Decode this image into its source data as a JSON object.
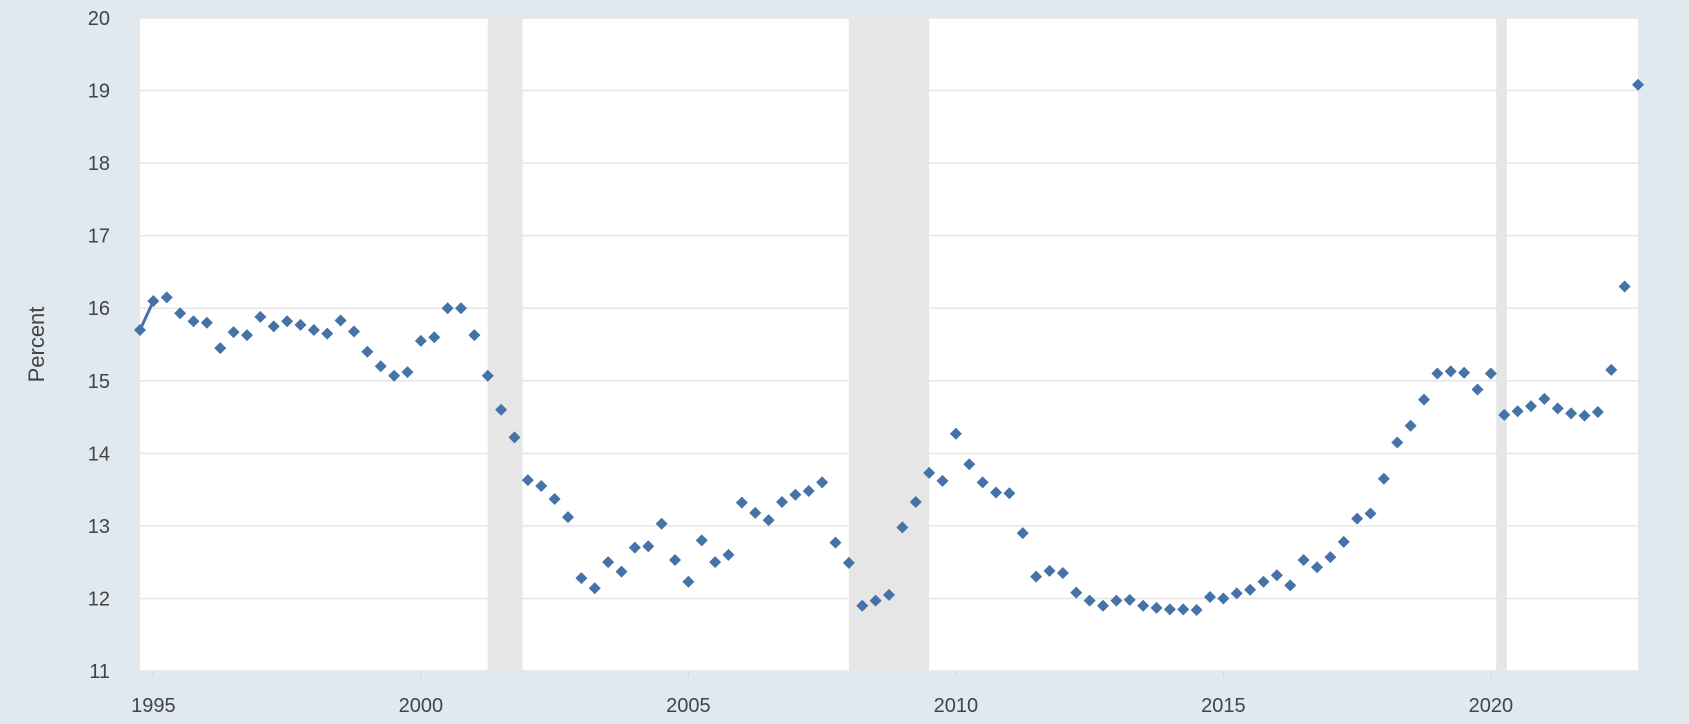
{
  "chart_data": {
    "type": "scatter",
    "title": "",
    "xlabel": "",
    "ylabel": "Percent",
    "xlim": [
      1994.75,
      2022.75
    ],
    "ylim": [
      11,
      20
    ],
    "x_ticks": [
      1995,
      2000,
      2005,
      2010,
      2015,
      2020
    ],
    "y_ticks": [
      11,
      12,
      13,
      14,
      15,
      16,
      17,
      18,
      19,
      20
    ],
    "grid": "horizontal",
    "legend": "none",
    "colors": {
      "marker": "#4572a7",
      "plot_background": "#ffffff",
      "page_background": "#e1e9f0",
      "recession_shading": "#e6e6e6",
      "grid": "#e6e6e6"
    },
    "recessions": [
      [
        2001.25,
        2001.9
      ],
      [
        2008.0,
        2009.5
      ],
      [
        2020.1,
        2020.3
      ]
    ],
    "series": [
      {
        "x": [
          1994.75,
          1995.0,
          1995.25,
          1995.5,
          1995.75,
          1996.0,
          1996.25,
          1996.5,
          1996.75,
          1997.0,
          1997.25,
          1997.5,
          1997.75,
          1998.0,
          1998.25,
          1998.5,
          1998.75,
          1999.0,
          1999.25,
          1999.5,
          1999.75,
          2000.0,
          2000.25,
          2000.5,
          2000.75,
          2001.0,
          2001.25,
          2001.5,
          2001.75,
          2002.0,
          2002.25,
          2002.5,
          2002.75,
          2003.0,
          2003.25,
          2003.5,
          2003.75,
          2004.0,
          2004.25,
          2004.5,
          2004.75,
          2005.0,
          2005.25,
          2005.5,
          2005.75,
          2006.0,
          2006.25,
          2006.5,
          2006.75,
          2007.0,
          2007.25,
          2007.5,
          2007.75,
          2008.0,
          2008.25,
          2008.5,
          2008.75,
          2009.0,
          2009.25,
          2009.5,
          2009.75,
          2010.0,
          2010.25,
          2010.5,
          2010.75,
          2011.0,
          2011.25,
          2011.5,
          2011.75,
          2012.0,
          2012.25,
          2012.5,
          2012.75,
          2013.0,
          2013.25,
          2013.5,
          2013.75,
          2014.0,
          2014.25,
          2014.5,
          2014.75,
          2015.0,
          2015.25,
          2015.5,
          2015.75,
          2016.0,
          2016.25,
          2016.5,
          2016.75,
          2017.0,
          2017.25,
          2017.5,
          2017.75,
          2018.0,
          2018.25,
          2018.5,
          2018.75,
          2019.0,
          2019.25,
          2019.5,
          2019.75,
          2020.0,
          2020.25,
          2020.5,
          2020.75,
          2021.0,
          2021.25,
          2021.5,
          2021.75,
          2022.0,
          2022.25,
          2022.5,
          2022.75
        ],
        "y": [
          15.7,
          16.1,
          16.15,
          15.93,
          15.82,
          15.8,
          15.45,
          15.67,
          15.63,
          15.88,
          15.75,
          15.82,
          15.77,
          15.7,
          15.65,
          15.83,
          15.68,
          15.4,
          15.2,
          15.07,
          15.12,
          15.55,
          15.6,
          16.0,
          16.0,
          15.63,
          15.07,
          14.6,
          14.22,
          13.63,
          13.55,
          13.37,
          13.12,
          12.28,
          12.14,
          12.5,
          12.37,
          12.7,
          12.72,
          13.03,
          12.53,
          12.23,
          12.8,
          12.5,
          12.6,
          13.32,
          13.18,
          13.08,
          13.33,
          13.43,
          13.48,
          13.6,
          12.77,
          12.49,
          11.9,
          11.97,
          12.05,
          12.98,
          13.33,
          13.73,
          13.62,
          14.27,
          13.85,
          13.6,
          13.46,
          13.45,
          12.9,
          12.3,
          12.38,
          12.35,
          12.08,
          11.97,
          11.9,
          11.97,
          11.98,
          11.9,
          11.87,
          11.85,
          11.85,
          11.84,
          12.02,
          12.0,
          12.07,
          12.12,
          12.23,
          12.32,
          12.18,
          12.53,
          12.43,
          12.57,
          12.78,
          13.1,
          13.17,
          13.65,
          14.15,
          14.38,
          14.74,
          15.1,
          15.13,
          15.11,
          14.88,
          15.1,
          14.53,
          14.58,
          14.65,
          14.75,
          14.62,
          14.55,
          14.52,
          14.57,
          15.15,
          16.3,
          19.08
        ],
        "connected_segment": [
          0,
          1
        ]
      }
    ]
  }
}
